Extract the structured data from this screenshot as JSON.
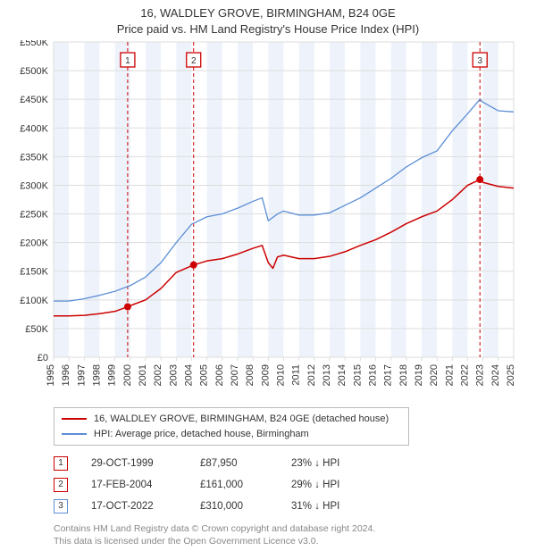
{
  "chart": {
    "type": "line",
    "title_line1": "16, WALDLEY GROVE, BIRMINGHAM, B24 0GE",
    "title_line2": "Price paid vs. HM Land Registry's House Price Index (HPI)",
    "title_fontsize": 13,
    "background_color": "#ffffff",
    "plot_border_color": "#dddddd",
    "grid_color": "#dddddd",
    "ylabel_prefix": "£",
    "ylim": [
      0,
      550
    ],
    "ytick_step": 50,
    "ytick_labels": [
      "£0",
      "£50K",
      "£100K",
      "£150K",
      "£200K",
      "£250K",
      "£300K",
      "£350K",
      "£400K",
      "£450K",
      "£500K",
      "£550K"
    ],
    "xlim": [
      1995,
      2025
    ],
    "xtick_step": 1,
    "xtick_labels": [
      "1995",
      "1996",
      "1997",
      "1998",
      "1999",
      "2000",
      "2001",
      "2002",
      "2003",
      "2004",
      "2005",
      "2006",
      "2007",
      "2008",
      "2009",
      "2010",
      "2011",
      "2012",
      "2013",
      "2014",
      "2015",
      "2016",
      "2017",
      "2018",
      "2019",
      "2020",
      "2021",
      "2022",
      "2023",
      "2024",
      "2025"
    ],
    "label_fontsize": 11,
    "label_color": "#333333",
    "yearly_band_color": "#eef3fb",
    "series": {
      "property": {
        "label": "16, WALDLEY GROVE, BIRMINGHAM, B24 0GE (detached house)",
        "color": "#cc0000",
        "line_width": 1.5,
        "data": [
          [
            1995,
            72
          ],
          [
            1996,
            72
          ],
          [
            1997,
            73
          ],
          [
            1998,
            76
          ],
          [
            1999,
            80
          ],
          [
            1999.83,
            88
          ],
          [
            2000,
            90
          ],
          [
            2001,
            100
          ],
          [
            2002,
            120
          ],
          [
            2003,
            148
          ],
          [
            2004.13,
            161
          ],
          [
            2005,
            168
          ],
          [
            2006,
            172
          ],
          [
            2007,
            180
          ],
          [
            2008,
            190
          ],
          [
            2008.6,
            195
          ],
          [
            2009,
            165
          ],
          [
            2009.3,
            155
          ],
          [
            2009.6,
            175
          ],
          [
            2010,
            178
          ],
          [
            2011,
            172
          ],
          [
            2012,
            172
          ],
          [
            2013,
            176
          ],
          [
            2014,
            184
          ],
          [
            2015,
            195
          ],
          [
            2016,
            205
          ],
          [
            2017,
            218
          ],
          [
            2018,
            233
          ],
          [
            2019,
            245
          ],
          [
            2020,
            255
          ],
          [
            2021,
            275
          ],
          [
            2022,
            300
          ],
          [
            2022.8,
            310
          ],
          [
            2023,
            305
          ],
          [
            2024,
            298
          ],
          [
            2025,
            295
          ]
        ]
      },
      "hpi": {
        "label": "HPI: Average price, detached house, Birmingham",
        "color": "#5b8dd6",
        "line_width": 1.3,
        "data": [
          [
            1995,
            98
          ],
          [
            1996,
            98
          ],
          [
            1997,
            102
          ],
          [
            1998,
            108
          ],
          [
            1999,
            115
          ],
          [
            2000,
            125
          ],
          [
            2001,
            140
          ],
          [
            2002,
            165
          ],
          [
            2003,
            200
          ],
          [
            2004,
            232
          ],
          [
            2005,
            245
          ],
          [
            2006,
            250
          ],
          [
            2007,
            260
          ],
          [
            2008,
            272
          ],
          [
            2008.6,
            278
          ],
          [
            2009,
            238
          ],
          [
            2009.6,
            250
          ],
          [
            2010,
            255
          ],
          [
            2011,
            248
          ],
          [
            2012,
            248
          ],
          [
            2013,
            252
          ],
          [
            2014,
            265
          ],
          [
            2015,
            278
          ],
          [
            2016,
            295
          ],
          [
            2017,
            312
          ],
          [
            2018,
            332
          ],
          [
            2019,
            348
          ],
          [
            2020,
            360
          ],
          [
            2021,
            395
          ],
          [
            2022,
            425
          ],
          [
            2022.8,
            450
          ],
          [
            2023,
            445
          ],
          [
            2024,
            430
          ],
          [
            2025,
            428
          ]
        ]
      }
    },
    "sales_markers": [
      {
        "n": "1",
        "year": 1999.83,
        "value": 88,
        "color": "#cc0000",
        "vline_color": "#cc0000"
      },
      {
        "n": "2",
        "year": 2004.13,
        "value": 161,
        "color": "#cc0000",
        "vline_color": "#cc0000"
      },
      {
        "n": "3",
        "year": 2022.8,
        "value": 310,
        "color": "#cc0000",
        "vline_color": "#cc0000"
      }
    ],
    "marker_dash": "4,3",
    "marker_label_box_border": "#cc0000",
    "marker_label_box_fill": "#ffffff",
    "marker_label_fontsize": 10
  },
  "legend": {
    "rows": [
      {
        "color": "#cc0000",
        "label": "16, WALDLEY GROVE, BIRMINGHAM, B24 0GE (detached house)"
      },
      {
        "color": "#5b8dd6",
        "label": "HPI: Average price, detached house, Birmingham"
      }
    ],
    "border_color": "#bbbbbb"
  },
  "sales_table": {
    "rows": [
      {
        "n": "1",
        "color": "#cc0000",
        "date": "29-OCT-1999",
        "price": "£87,950",
        "delta": "23% ↓ HPI"
      },
      {
        "n": "2",
        "color": "#cc0000",
        "date": "17-FEB-2004",
        "price": "£161,000",
        "delta": "29% ↓ HPI"
      },
      {
        "n": "3",
        "color": "#5b8dd6",
        "date": "17-OCT-2022",
        "price": "£310,000",
        "delta": "31% ↓ HPI"
      }
    ]
  },
  "license": {
    "line1": "Contains HM Land Registry data © Crown copyright and database right 2024.",
    "line2": "This data is licensed under the Open Government Licence v3.0."
  }
}
